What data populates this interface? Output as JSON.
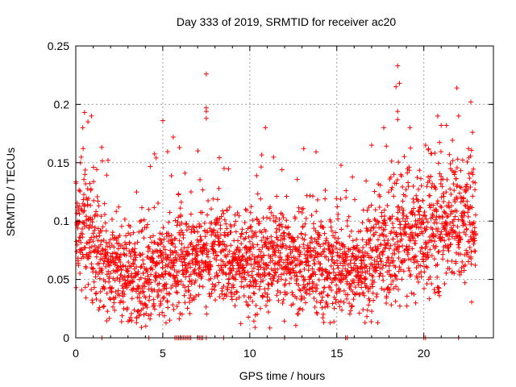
{
  "chart_data": {
    "type": "scatter",
    "title": "Day 333 of 2019, SRMTID for receiver ac20",
    "xlabel": "GPS time / hours",
    "ylabel": "SRMTID / TECUs",
    "xlim": [
      0,
      24
    ],
    "ylim": [
      0,
      0.25
    ],
    "xticks": [
      0,
      5,
      10,
      15,
      20
    ],
    "xtick_labels": [
      "0",
      "5",
      "10",
      "15",
      "20"
    ],
    "yticks": [
      0,
      0.05,
      0.1,
      0.15,
      0.2,
      0.25
    ],
    "ytick_labels": [
      "0",
      "0.05",
      "0.1",
      "0.15",
      "0.2",
      "0.25"
    ],
    "grid": true,
    "marker": "+",
    "series_color": "#ff0000",
    "series": [
      {
        "name": "SRMTID",
        "x_range": [
          0,
          23
        ],
        "approx_count": 2700,
        "trend_hours": [
          0,
          1,
          2,
          3,
          4,
          5,
          6,
          7,
          8,
          9,
          10,
          11,
          12,
          13,
          14,
          15,
          16,
          17,
          18,
          19,
          20,
          21,
          22,
          23
        ],
        "trend_median": [
          0.095,
          0.085,
          0.065,
          0.055,
          0.052,
          0.06,
          0.065,
          0.07,
          0.075,
          0.07,
          0.065,
          0.07,
          0.068,
          0.062,
          0.06,
          0.062,
          0.055,
          0.07,
          0.08,
          0.085,
          0.09,
          0.095,
          0.1,
          0.095
        ],
        "trend_spread": [
          0.03,
          0.03,
          0.025,
          0.025,
          0.025,
          0.025,
          0.025,
          0.025,
          0.025,
          0.025,
          0.025,
          0.025,
          0.025,
          0.025,
          0.025,
          0.025,
          0.02,
          0.03,
          0.03,
          0.03,
          0.03,
          0.03,
          0.03,
          0.03
        ],
        "notable_points": [
          {
            "x": 7.5,
            "y": 0.226
          },
          {
            "x": 7.5,
            "y": 0.197
          },
          {
            "x": 7.5,
            "y": 0.194
          },
          {
            "x": 7.5,
            "y": 0.188
          },
          {
            "x": 18.5,
            "y": 0.233
          },
          {
            "x": 18.4,
            "y": 0.215
          },
          {
            "x": 18.6,
            "y": 0.218
          },
          {
            "x": 18.5,
            "y": 0.194
          },
          {
            "x": 18.5,
            "y": 0.187
          },
          {
            "x": 21.9,
            "y": 0.214
          },
          {
            "x": 22.7,
            "y": 0.202
          },
          {
            "x": 22.0,
            "y": 0.19
          },
          {
            "x": 20.8,
            "y": 0.19
          },
          {
            "x": 5.0,
            "y": 0.186
          },
          {
            "x": 0.5,
            "y": 0.193
          },
          {
            "x": 0.9,
            "y": 0.19
          },
          {
            "x": 0.7,
            "y": 0.185
          },
          {
            "x": 0.4,
            "y": 0.18
          },
          {
            "x": 10.9,
            "y": 0.18
          },
          {
            "x": 17.7,
            "y": 0.18
          },
          {
            "x": 19.2,
            "y": 0.18
          },
          {
            "x": 13.1,
            "y": 0.162
          },
          {
            "x": 5.6,
            "y": 0.172
          },
          {
            "x": 17.0,
            "y": 0.165
          },
          {
            "x": 20.1,
            "y": 0.165
          },
          {
            "x": 21.0,
            "y": 0.182
          },
          {
            "x": 21.3,
            "y": 0.182
          },
          {
            "x": 22.8,
            "y": 0.176
          }
        ],
        "zero_points_x": [
          1.5,
          4.2,
          5.7,
          5.8,
          5.9,
          6.0,
          6.1,
          6.2,
          6.3,
          6.4,
          6.5,
          6.6,
          7.0,
          7.1,
          7.2,
          7.3,
          7.5,
          8.5,
          12.0,
          15.5,
          15.6,
          20.0,
          20.1,
          22.0
        ]
      }
    ]
  }
}
